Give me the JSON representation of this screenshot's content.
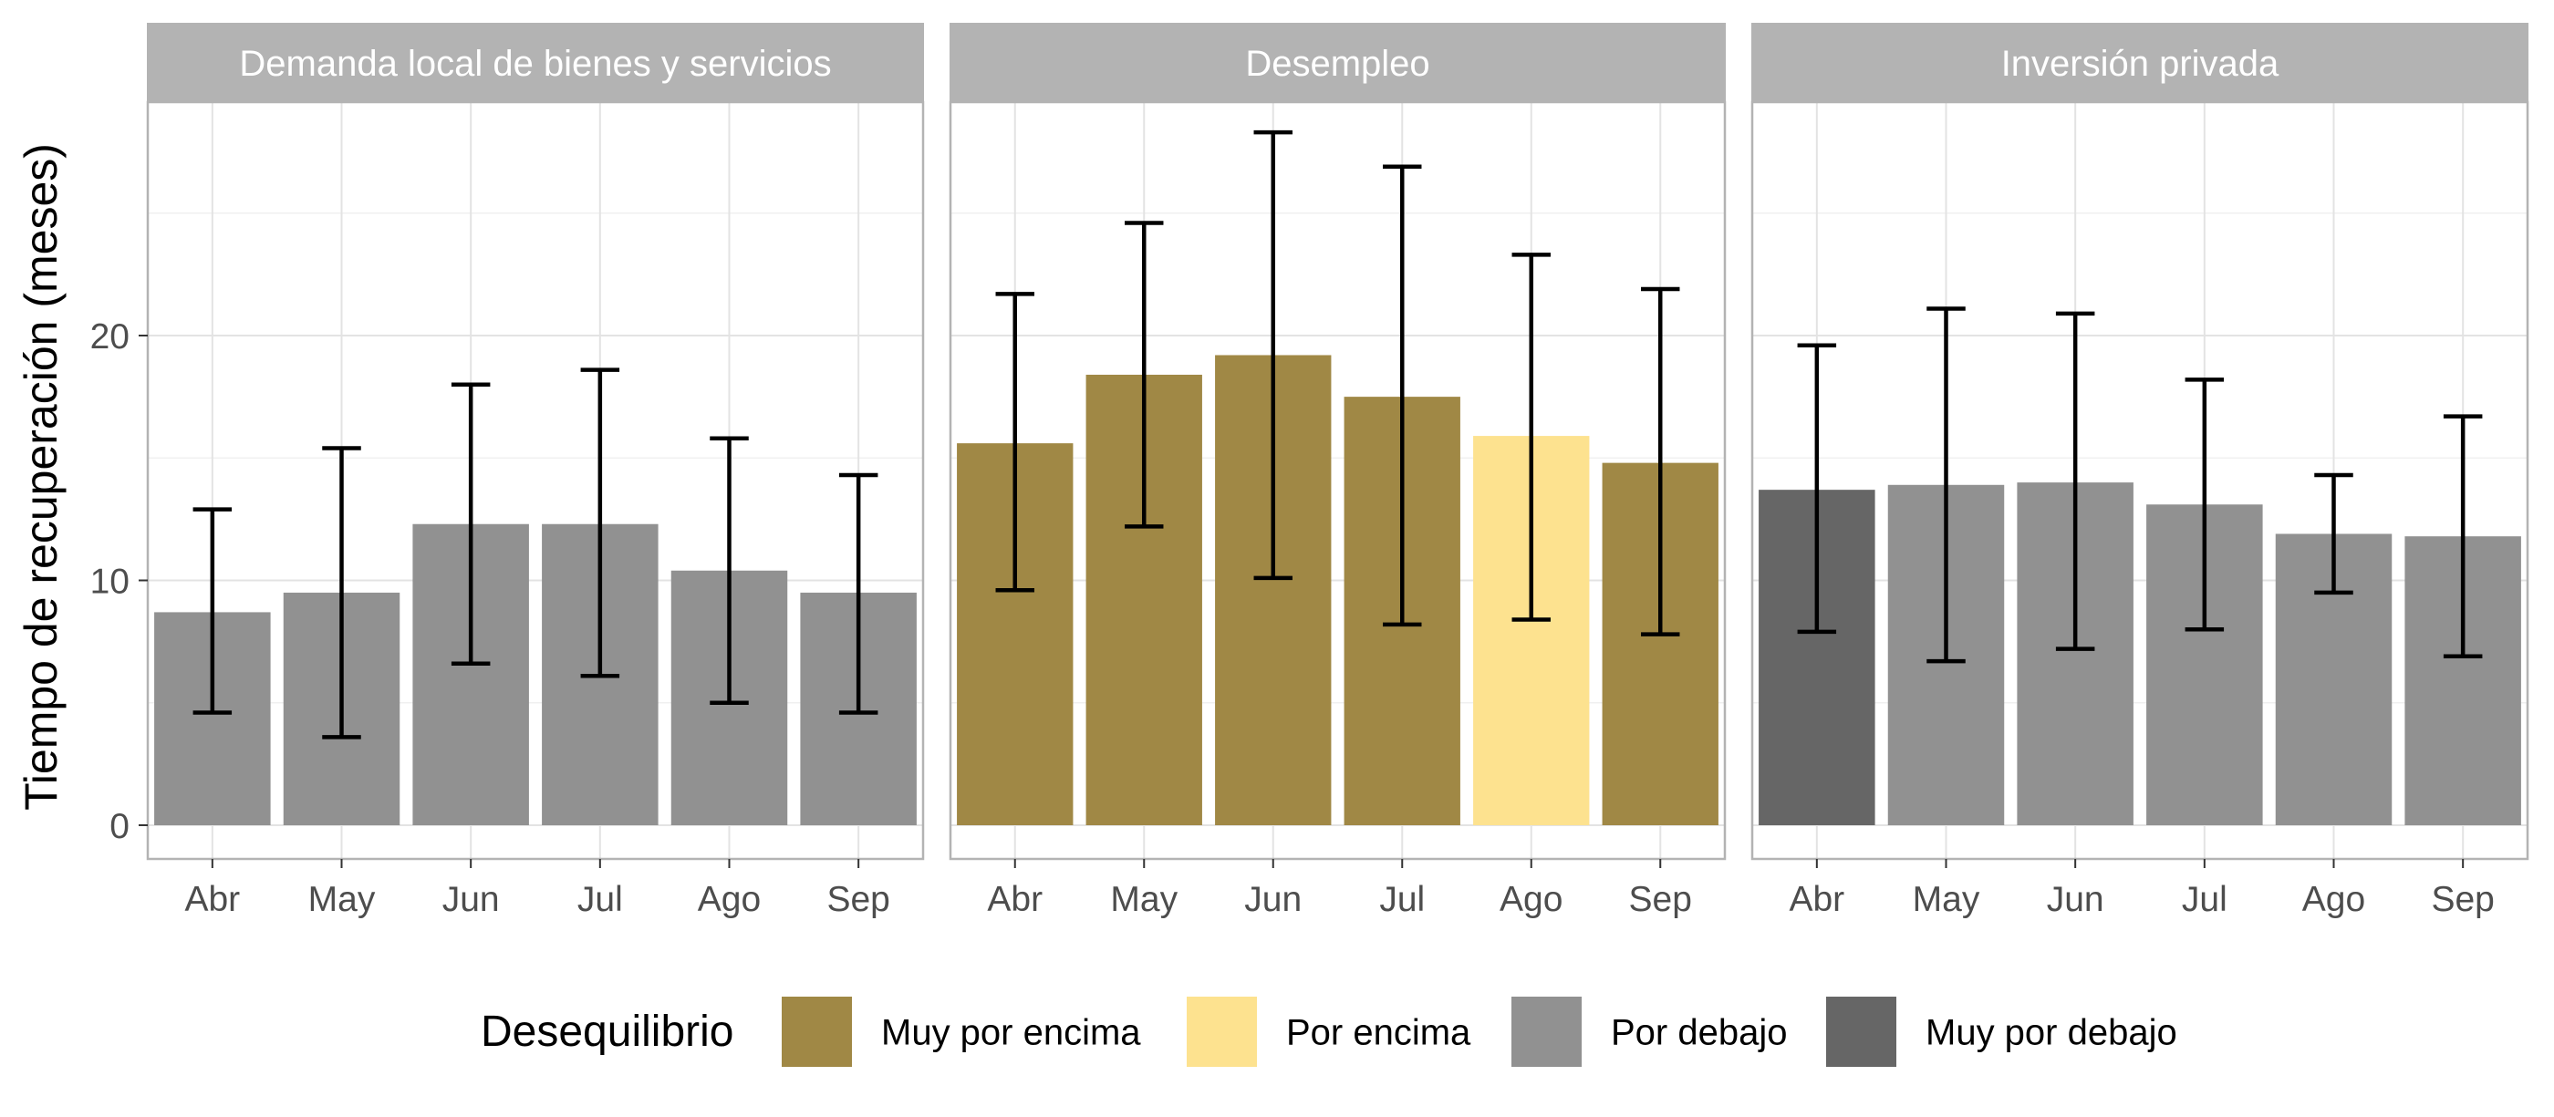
{
  "chart_data": {
    "type": "bar",
    "ylabel": "Tiempo de recuperación (meses)",
    "ylim": [
      0,
      29
    ],
    "yticks": [
      0,
      10,
      20
    ],
    "categories": [
      "Abr",
      "May",
      "Jun",
      "Jul",
      "Ago",
      "Sep"
    ],
    "panels": [
      {
        "title": "Demanda local de bienes y servicios",
        "values": [
          8.7,
          9.5,
          12.3,
          12.3,
          10.4,
          9.5
        ],
        "error_low": [
          4.6,
          3.6,
          6.6,
          6.1,
          5.0,
          4.6
        ],
        "error_high": [
          12.9,
          15.4,
          18.0,
          18.6,
          15.8,
          14.3
        ],
        "categories_level": [
          "Por debajo",
          "Por debajo",
          "Por debajo",
          "Por debajo",
          "Por debajo",
          "Por debajo"
        ]
      },
      {
        "title": "Desempleo",
        "values": [
          15.6,
          18.4,
          19.2,
          17.5,
          15.9,
          14.8
        ],
        "error_low": [
          9.6,
          12.2,
          10.1,
          8.2,
          8.4,
          7.8
        ],
        "error_high": [
          21.7,
          24.6,
          28.3,
          26.9,
          23.3,
          21.9
        ],
        "categories_level": [
          "Muy por encima",
          "Muy por encima",
          "Muy por encima",
          "Muy por encima",
          "Por encima",
          "Muy por encima"
        ]
      },
      {
        "title": "Inversión privada",
        "values": [
          13.7,
          13.9,
          14.0,
          13.1,
          11.9,
          11.8
        ],
        "error_low": [
          7.9,
          6.7,
          7.2,
          8.0,
          9.5,
          6.9
        ],
        "error_high": [
          19.6,
          21.1,
          20.9,
          18.2,
          14.3,
          16.7
        ],
        "categories_level": [
          "Muy por debajo",
          "Por debajo",
          "Por debajo",
          "Por debajo",
          "Por debajo",
          "Por debajo"
        ]
      }
    ],
    "legend": {
      "title": "Desequilibrio",
      "position": "bottom",
      "items": [
        {
          "label": "Muy por encima",
          "color": "#a08845"
        },
        {
          "label": "Por encima",
          "color": "#fde28f"
        },
        {
          "label": "Por debajo",
          "color": "#919191"
        },
        {
          "label": "Muy por debajo",
          "color": "#666666"
        }
      ]
    },
    "grid": true
  }
}
